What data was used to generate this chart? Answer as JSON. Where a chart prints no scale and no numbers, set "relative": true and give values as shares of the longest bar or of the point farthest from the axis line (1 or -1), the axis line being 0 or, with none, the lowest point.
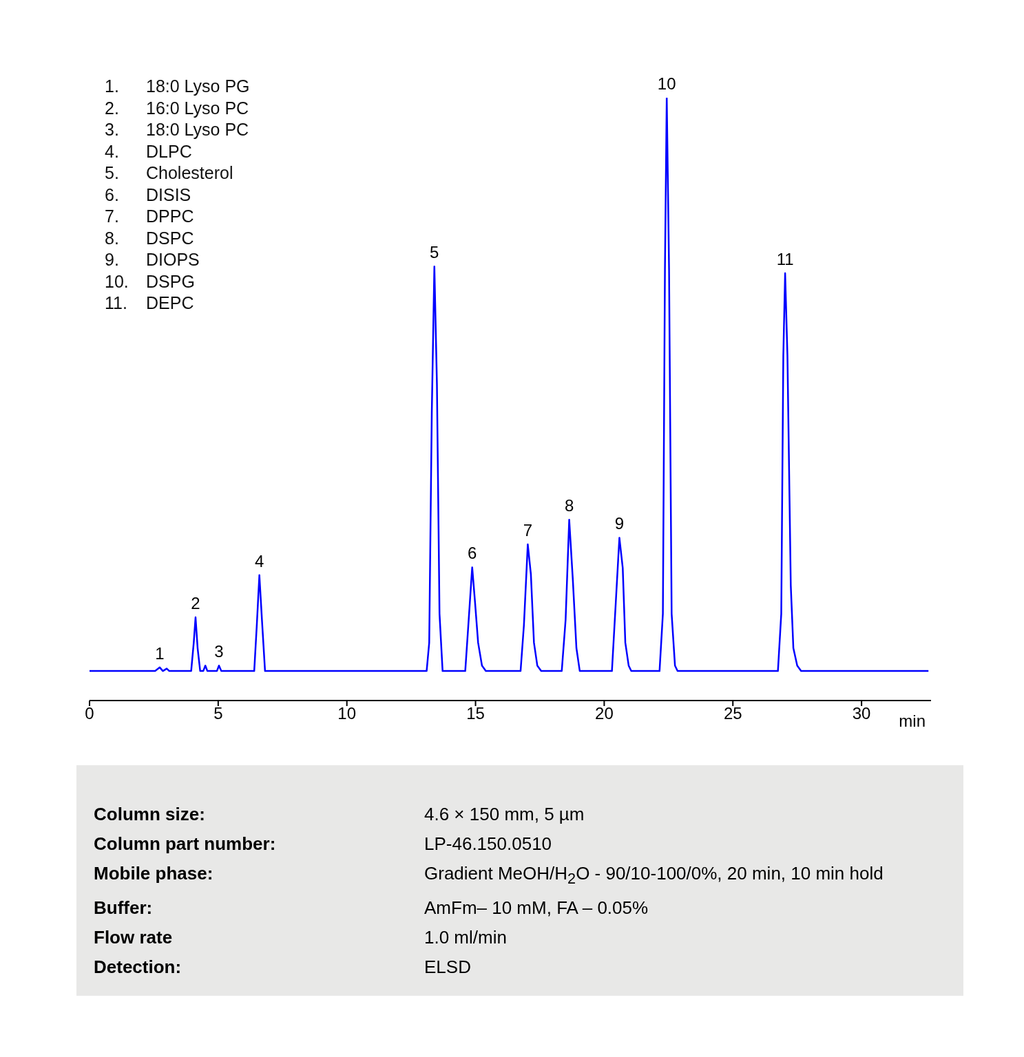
{
  "chart_data": {
    "type": "line",
    "relative": true,
    "xlabel": "min",
    "xlim": [
      0,
      32.7
    ],
    "xticks": [
      0,
      5,
      10,
      15,
      20,
      25,
      30
    ],
    "x": [
      0,
      2.55,
      2.73,
      2.85,
      3.0,
      3.1,
      3.95,
      4.05,
      4.12,
      4.2,
      4.3,
      4.42,
      4.5,
      4.58,
      4.95,
      5.03,
      5.12,
      6.4,
      6.5,
      6.6,
      6.7,
      6.82,
      13.1,
      13.2,
      13.3,
      13.4,
      13.5,
      13.6,
      13.72,
      14.6,
      14.72,
      14.87,
      14.98,
      15.1,
      15.25,
      15.4,
      16.75,
      16.88,
      17.03,
      17.15,
      17.27,
      17.4,
      17.55,
      18.35,
      18.5,
      18.64,
      18.78,
      18.92,
      19.05,
      20.3,
      20.45,
      20.59,
      20.72,
      20.82,
      20.95,
      21.05,
      22.15,
      22.28,
      22.36,
      22.43,
      22.52,
      22.62,
      22.75,
      22.85,
      26.75,
      26.88,
      26.96,
      27.03,
      27.12,
      27.25,
      27.35,
      27.5,
      27.65,
      32.6
    ],
    "series": [
      {
        "color": "#0000ff",
        "values": [
          0.049,
          0.049,
          0.055,
          0.049,
          0.053,
          0.049,
          0.049,
          0.096,
          0.138,
          0.087,
          0.049,
          0.049,
          0.058,
          0.049,
          0.049,
          0.058,
          0.049,
          0.049,
          0.125,
          0.208,
          0.134,
          0.049,
          0.049,
          0.096,
          0.477,
          0.72,
          0.524,
          0.144,
          0.049,
          0.049,
          0.125,
          0.221,
          0.163,
          0.096,
          0.058,
          0.049,
          0.049,
          0.125,
          0.259,
          0.21,
          0.096,
          0.058,
          0.049,
          0.049,
          0.134,
          0.3,
          0.201,
          0.087,
          0.049,
          0.049,
          0.163,
          0.27,
          0.22,
          0.096,
          0.058,
          0.049,
          0.049,
          0.144,
          0.715,
          1,
          0.715,
          0.144,
          0.058,
          0.049,
          0.049,
          0.144,
          0.572,
          0.709,
          0.572,
          0.191,
          0.087,
          0.058,
          0.049,
          0.049
        ]
      }
    ],
    "annotations": [
      {
        "text": "1",
        "x": 2.73,
        "y": 0.055
      },
      {
        "text": "2",
        "x": 4.12,
        "y": 0.138
      },
      {
        "text": "3",
        "x": 5.03,
        "y": 0.058
      },
      {
        "text": "4",
        "x": 6.6,
        "y": 0.208
      },
      {
        "text": "5",
        "x": 13.4,
        "y": 0.72
      },
      {
        "text": "6",
        "x": 14.87,
        "y": 0.221
      },
      {
        "text": "7",
        "x": 17.03,
        "y": 0.259
      },
      {
        "text": "8",
        "x": 18.64,
        "y": 0.3
      },
      {
        "text": "9",
        "x": 20.59,
        "y": 0.27
      },
      {
        "text": "10",
        "x": 22.43,
        "y": 1
      },
      {
        "text": "11",
        "x": 27.03,
        "y": 0.709
      },
      "1.",
      "18:0 Lyso PG",
      "2.",
      "16:0 Lyso PC",
      "3.",
      "18:0 Lyso PC",
      "4.",
      "DLPC",
      "5.",
      "Cholesterol",
      "6.",
      "DISIS",
      "7.",
      "DPPC",
      "8.",
      "DSPC",
      "9.",
      "DIOPS",
      "10.",
      "DSPG",
      "11.",
      "DEPC",
      "Column size:",
      "4.6 × 150 mm, 5 µm",
      "Column part number:",
      "LP-46.150.0510",
      "Mobile phase:",
      "Gradient MeOH/H$_{2}$O - 90/10-100/0%, 20 min, 10 min hold",
      "Buffer:",
      "AmFm– 10 mM, FA – 0.05%",
      "Flow rate",
      "1.0 ml/min",
      "Detection:",
      "ELSD"
    ]
  }
}
